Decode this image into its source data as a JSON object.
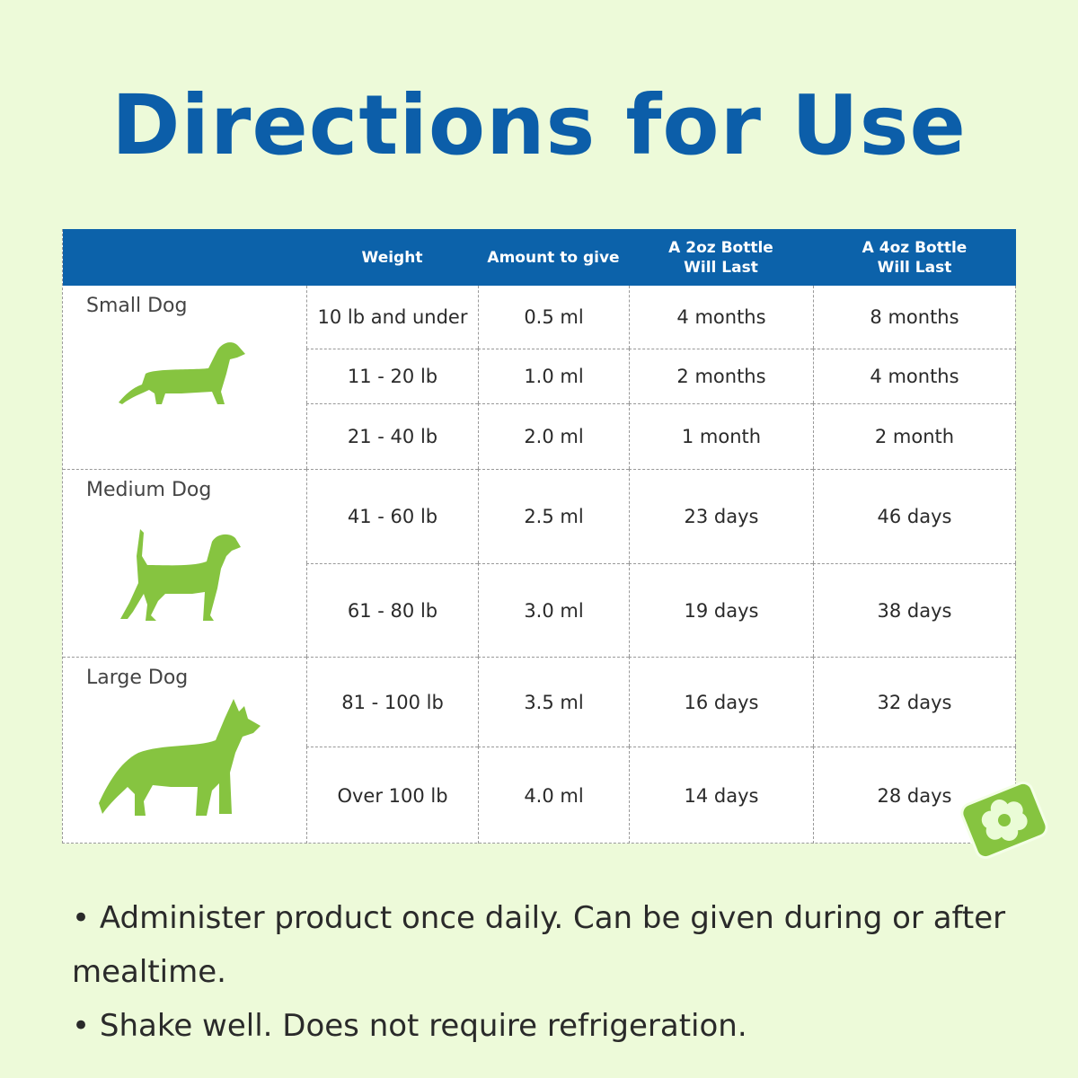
{
  "title": "Directions for Use",
  "headers": [
    "",
    "Weight",
    "Amount to give",
    "A 2oz Bottle\nWill Last",
    "A 4oz Bottle\nWill Last"
  ],
  "groups": [
    {
      "label": "Small Dog",
      "icon": "dachshund-icon",
      "rows": [
        [
          "10 lb and under",
          "0.5 ml",
          "4 months",
          "8 months"
        ],
        [
          "11 - 20 lb",
          "1.0 ml",
          "2 months",
          "4 months"
        ],
        [
          "21 - 40 lb",
          "2.0 ml",
          "1 month",
          "2 month"
        ]
      ]
    },
    {
      "label": "Medium Dog",
      "icon": "beagle-icon",
      "rows": [
        [
          "41 - 60 lb",
          "2.5 ml",
          "23 days",
          "46 days"
        ],
        [
          "61 - 80 lb",
          "3.0 ml",
          "19 days",
          "38 days"
        ]
      ]
    },
    {
      "label": "Large Dog",
      "icon": "husky-icon",
      "rows": [
        [
          "81 - 100 lb",
          "3.5 ml",
          "16 days",
          "32 days"
        ],
        [
          "Over 100 lb",
          "4.0 ml",
          "14 days",
          "28 days"
        ]
      ]
    }
  ],
  "notes": [
    "Administer product once daily. Can be given during or after mealtime.",
    "Shake well. Does not require refrigeration."
  ],
  "colors": {
    "title": "#0c5ea9",
    "header": "#0c62aa",
    "dog": "#86c440",
    "background": "#edfad9"
  }
}
